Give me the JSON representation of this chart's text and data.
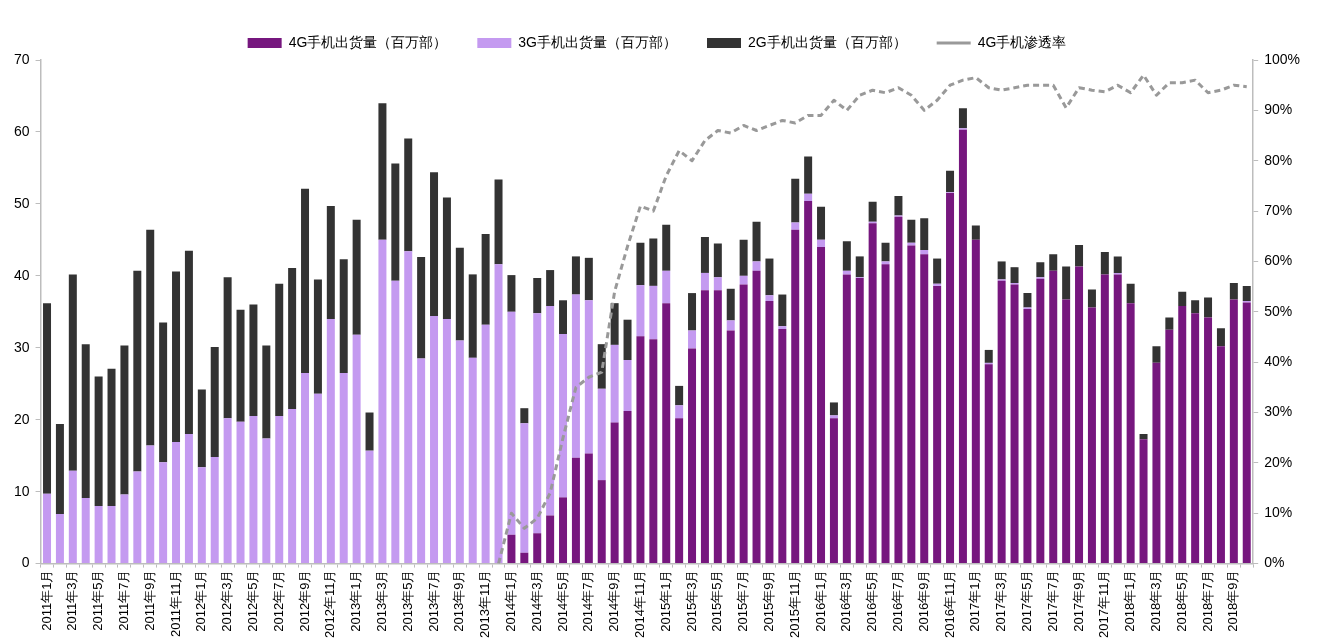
{
  "chart_data": {
    "type": "bar",
    "stacked": true,
    "legend": "top",
    "grid": false,
    "categories": [
      "2011年1月",
      null,
      "2011年3月",
      null,
      "2011年5月",
      null,
      "2011年7月",
      null,
      "2011年9月",
      null,
      "2011年11月",
      null,
      "2012年1月",
      null,
      "2012年3月",
      null,
      "2012年5月",
      null,
      "2012年7月",
      null,
      "2012年9月",
      null,
      "2012年11月",
      null,
      "2013年1月",
      null,
      "2013年3月",
      null,
      "2013年5月",
      null,
      "2013年7月",
      null,
      "2013年9月",
      null,
      "2013年11月",
      null,
      "2014年1月",
      null,
      "2014年3月",
      null,
      "2014年5月",
      null,
      "2014年7月",
      null,
      "2014年9月",
      null,
      "2014年11月",
      null,
      "2015年1月",
      null,
      "2015年3月",
      null,
      "2015年5月",
      null,
      "2015年7月",
      null,
      "2015年9月",
      null,
      "2015年11月",
      null,
      "2016年1月",
      null,
      "2016年3月",
      null,
      "2016年5月",
      null,
      "2016年7月",
      null,
      "2016年9月",
      null,
      "2016年11月",
      null,
      "2017年1月",
      null,
      "2017年3月",
      null,
      "2017年5月",
      null,
      "2017年7月",
      null,
      "2017年9月",
      null,
      "2017年11月",
      null,
      "2018年1月",
      null,
      "2018年3月",
      null,
      "2018年5月",
      null,
      "2018年7月",
      null,
      "2018年9月",
      null
    ],
    "ylim": [
      0,
      70
    ],
    "yticks": [
      0,
      10,
      20,
      30,
      40,
      50,
      60,
      70
    ],
    "y2lim": [
      0,
      100
    ],
    "y2ticks": [
      {
        "value": 0,
        "label": "0%"
      },
      {
        "value": 10,
        "label": "10%"
      },
      {
        "value": 20,
        "label": "20%"
      },
      {
        "value": 30,
        "label": "30%"
      },
      {
        "value": 40,
        "label": "40%"
      },
      {
        "value": 50,
        "label": "50%"
      },
      {
        "value": 60,
        "label": "60%"
      },
      {
        "value": 70,
        "label": "70%"
      },
      {
        "value": 80,
        "label": "80%"
      },
      {
        "value": 90,
        "label": "90%"
      },
      {
        "value": 100,
        "label": "100%"
      }
    ],
    "series": [
      {
        "name": "4G手机出货量（百万部）",
        "color": "#76177e",
        "values": [
          null,
          null,
          null,
          null,
          null,
          null,
          null,
          null,
          null,
          null,
          null,
          null,
          null,
          null,
          null,
          null,
          null,
          null,
          null,
          null,
          null,
          null,
          null,
          null,
          null,
          null,
          null,
          null,
          null,
          null,
          null,
          null,
          null,
          null,
          null,
          null,
          4,
          1.5,
          4.2,
          6.7,
          9.2,
          14.7,
          15.3,
          11.6,
          19.6,
          21.2,
          31.6,
          31.2,
          36.2,
          20.2,
          29.9,
          38,
          38,
          32.4,
          38.8,
          40.7,
          36.5,
          32.6,
          46.4,
          50.4,
          44,
          20.2,
          40.2,
          39.7,
          47.3,
          41.6,
          48.2,
          44.2,
          43,
          38.6,
          51.5,
          60.3,
          45,
          27.7,
          39.3,
          38.8,
          35.4,
          39.6,
          40.7,
          36.7,
          41.3,
          35.6,
          40.2,
          40.2,
          36.2,
          17.3,
          27.9,
          32.5,
          35.8,
          34.8,
          34.2,
          30.2,
          36.7,
          36.3
        ]
      },
      {
        "name": "3G手机出货量（百万部）",
        "color": "#c49af0",
        "values": [
          9.7,
          6.9,
          12.9,
          9.1,
          8,
          8,
          9.6,
          12.8,
          16.4,
          14.1,
          16.9,
          18,
          13.4,
          14.8,
          20.2,
          19.7,
          20.5,
          17.4,
          20.5,
          21.5,
          26.5,
          23.6,
          34,
          26.5,
          31.8,
          15.7,
          45,
          39.3,
          43.4,
          28.5,
          34.4,
          34,
          31,
          28.6,
          33.2,
          41.6,
          31,
          18,
          30.6,
          29.1,
          22.7,
          22.7,
          21.3,
          12.7,
          10.8,
          7.1,
          7.1,
          7.4,
          4.5,
          1.8,
          2.5,
          2.4,
          1.8,
          1.4,
          1.2,
          1.3,
          0.8,
          0.4,
          1,
          1,
          1,
          0.4,
          0.5,
          0.1,
          0.2,
          0.4,
          0.2,
          0.4,
          0.6,
          0.3,
          0.1,
          0.2,
          0,
          0.2,
          0.2,
          0.2,
          0.2,
          0.2,
          0,
          0,
          0,
          0,
          0,
          0.2,
          0,
          0,
          0,
          0,
          0,
          0,
          0,
          0,
          0,
          0.2
        ]
      },
      {
        "name": "2G手机出货量（百万部）",
        "color": "#333333",
        "values": [
          26.5,
          12.5,
          27.3,
          21.4,
          18,
          19.1,
          20.7,
          27.9,
          30,
          19.4,
          23.7,
          25.5,
          10.8,
          15.3,
          19.6,
          15.6,
          15.5,
          12.9,
          18.4,
          19.6,
          25.6,
          15.9,
          15.7,
          15.8,
          16,
          5.3,
          19,
          16.3,
          15.7,
          14.1,
          20,
          16.9,
          12.9,
          11.6,
          12.6,
          11.8,
          5.1,
          2.1,
          4.9,
          5,
          4.7,
          5.3,
          5.9,
          6.2,
          5.8,
          5.6,
          5.9,
          6.6,
          6.4,
          2.7,
          5.2,
          5,
          4.7,
          4.4,
          5,
          5.5,
          5.1,
          4.4,
          6.1,
          5.2,
          4.6,
          1.8,
          4.1,
          2.9,
          2.8,
          2.6,
          2.7,
          3.2,
          4.4,
          3.5,
          3,
          2.8,
          2,
          1.8,
          2.5,
          2.2,
          2,
          2.1,
          2.3,
          4.6,
          3,
          2.5,
          3.1,
          2.3,
          2.7,
          0.7,
          2.3,
          1.7,
          2,
          1.8,
          2.8,
          2.5,
          2.3,
          2.1
        ]
      },
      {
        "name": "4G手机渗透率",
        "type": "line",
        "axis": "y2",
        "color": "#999999",
        "line_style": "dashed",
        "marker": "none",
        "values": [
          null,
          null,
          null,
          null,
          null,
          null,
          null,
          null,
          null,
          null,
          null,
          null,
          null,
          null,
          null,
          null,
          null,
          null,
          null,
          null,
          null,
          null,
          null,
          null,
          null,
          null,
          null,
          null,
          null,
          null,
          null,
          null,
          null,
          null,
          null,
          0,
          10,
          7,
          9,
          14,
          25,
          35,
          37,
          38,
          54,
          63,
          71,
          70,
          77,
          82,
          80,
          84,
          86,
          85.5,
          87,
          86,
          87,
          88,
          87.5,
          89,
          89,
          92,
          90,
          93,
          94,
          93.5,
          94.5,
          93,
          90,
          92,
          95,
          96,
          96.5,
          94.5,
          94,
          94.5,
          95,
          95,
          95,
          90.5,
          94.5,
          94,
          93.7,
          95,
          93.5,
          97,
          93,
          95.5,
          95.5,
          96,
          93.5,
          94,
          95,
          94.7
        ]
      }
    ]
  }
}
